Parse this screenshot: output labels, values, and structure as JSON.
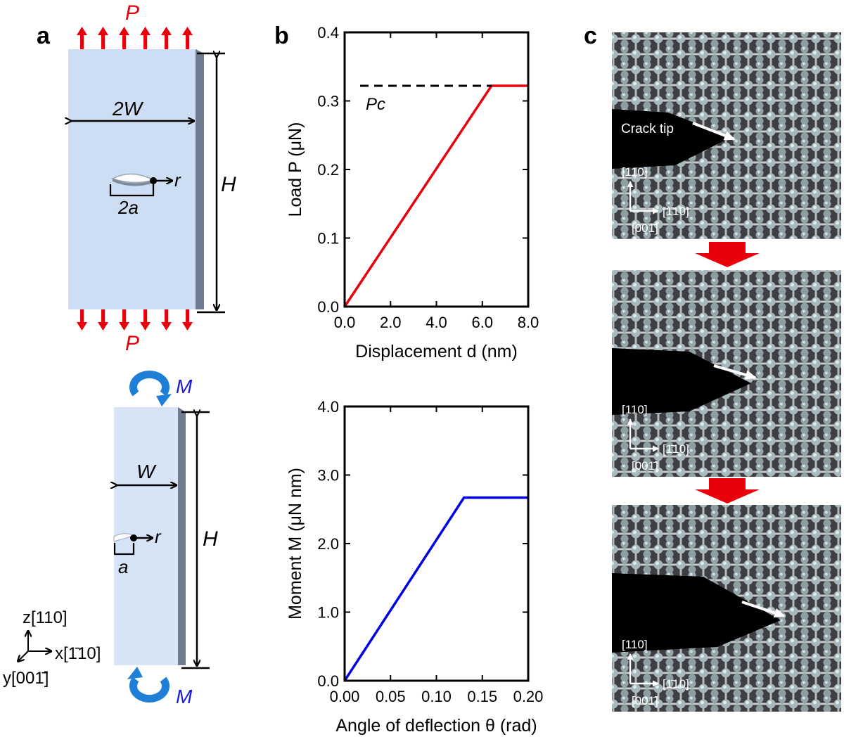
{
  "panel_labels": {
    "a": "a",
    "b": "b",
    "c": "c"
  },
  "schematic": {
    "top": {
      "load_top": "P",
      "load_bottom": "P",
      "width": "2W",
      "height": "H",
      "crack": "2a",
      "coord": "r"
    },
    "bottom": {
      "moment_top": "M",
      "moment_bottom": "M",
      "width": "W",
      "height": "H",
      "crack": "a",
      "coord": "r"
    },
    "axes": {
      "z": "z[110]",
      "x": "x[1̄10]",
      "y": "y[001̄]"
    }
  },
  "colors": {
    "load": "#e8000b",
    "moment_arrow": "#1f7fd6",
    "moment_text": "#1a1ad0",
    "plate": "#cdddf3",
    "plate_edge": "#6f7c8f",
    "line_red": "#e8000b",
    "line_blue": "#0000e0"
  },
  "chart_data": [
    {
      "type": "line",
      "xlabel": "Displacement  d  (nm)",
      "ylabel": "Load  P  (μN)",
      "xlim": [
        0,
        8
      ],
      "ylim": [
        0,
        0.4
      ],
      "xticks": [
        "0.0",
        "2.0",
        "4.0",
        "6.0",
        "8.0"
      ],
      "yticks": [
        "0.0",
        "0.1",
        "0.2",
        "0.3",
        "0.4"
      ],
      "series": [
        {
          "x": [
            0,
            6.4,
            8.0
          ],
          "y": [
            0,
            0.322,
            0.322
          ],
          "color": "#e8000b"
        }
      ],
      "reference_line": {
        "y": 0.322,
        "style": "dashed",
        "label": "Pc"
      }
    },
    {
      "type": "line",
      "xlabel": "Angle of deflection  θ  (rad)",
      "ylabel": "Moment  M  (μN nm)",
      "xlim": [
        0,
        0.2
      ],
      "ylim": [
        0,
        4.0
      ],
      "xticks": [
        "0.00",
        "0.05",
        "0.10",
        "0.15",
        "0.20"
      ],
      "yticks": [
        "0.0",
        "1.0",
        "2.0",
        "3.0",
        "4.0"
      ],
      "series": [
        {
          "x": [
            0,
            0.13,
            0.2
          ],
          "y": [
            0,
            2.67,
            2.67
          ],
          "color": "#0000e0"
        }
      ]
    }
  ],
  "atomistic": {
    "crack_label": "Crack tip",
    "dir_z": "[110]",
    "dir_x": "[1̄10]",
    "dir_y": "[001̄]"
  }
}
